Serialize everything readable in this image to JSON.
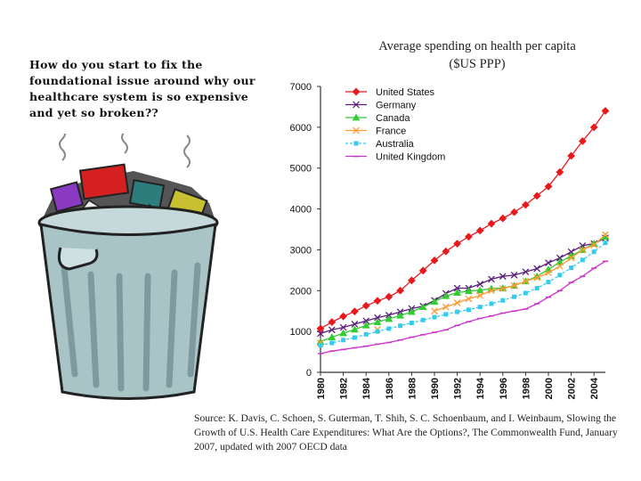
{
  "question_text": "How do you start to fix the foundational issue around why our healthcare system is so expensive and yet so broken??",
  "illustration": "overflowing-trash-can",
  "source_note": "Source: K. Davis, C. Schoen, S. Guterman, T. Shih, S. C. Schoenbaum, and I. Weinbaum, Slowing the Growth of U.S. Health Care Expenditures: What Are the Options?, The Commonwealth Fund, January 2007, updated with 2007 OECD data",
  "chart_data": {
    "type": "line",
    "title": "Average spending on health per capita ($US PPP)",
    "xlabel": "",
    "ylabel": "",
    "ylim": [
      0,
      7000
    ],
    "yticks": [
      0,
      1000,
      2000,
      3000,
      4000,
      5000,
      6000,
      7000
    ],
    "xticks": [
      1980,
      1982,
      1984,
      1986,
      1988,
      1990,
      1992,
      1994,
      1996,
      1998,
      2000,
      2002,
      2004
    ],
    "x": [
      1980,
      1981,
      1982,
      1983,
      1984,
      1985,
      1986,
      1987,
      1988,
      1989,
      1990,
      1991,
      1992,
      1993,
      1994,
      1995,
      1996,
      1997,
      1998,
      1999,
      2000,
      2001,
      2002,
      2003,
      2004,
      2005
    ],
    "legend_position": "top-right",
    "series": [
      {
        "name": "United States",
        "color": "#e8191e",
        "marker": "diamond",
        "values": [
          1070,
          1230,
          1370,
          1490,
          1630,
          1750,
          1850,
          2000,
          2250,
          2490,
          2740,
          2960,
          3150,
          3320,
          3470,
          3640,
          3770,
          3920,
          4100,
          4320,
          4550,
          4900,
          5300,
          5660,
          6000,
          6400
        ]
      },
      {
        "name": "Germany",
        "color": "#5b1f7a",
        "marker": "x",
        "values": [
          950,
          1040,
          1100,
          1180,
          1260,
          1340,
          1400,
          1480,
          1560,
          1620,
          1760,
          1930,
          2060,
          2060,
          2160,
          2280,
          2350,
          2380,
          2460,
          2540,
          2680,
          2800,
          2950,
          3100,
          3150,
          3290
        ]
      },
      {
        "name": "Canada",
        "color": "#33cc33",
        "marker": "triangle",
        "values": [
          750,
          860,
          960,
          1050,
          1150,
          1230,
          1310,
          1390,
          1480,
          1600,
          1730,
          1870,
          1950,
          1990,
          2010,
          2050,
          2060,
          2120,
          2230,
          2350,
          2520,
          2700,
          2850,
          3000,
          3150,
          3320
        ]
      },
      {
        "name": "France",
        "color": "#ff9933",
        "marker": "x",
        "values": [
          720,
          null,
          null,
          null,
          null,
          1050,
          null,
          null,
          null,
          null,
          1500,
          1600,
          1700,
          1800,
          1880,
          2000,
          2050,
          2120,
          2230,
          2320,
          2440,
          2600,
          2800,
          3000,
          3120,
          3370
        ]
      },
      {
        "name": "Australia",
        "color": "#33ccee",
        "marker": "square",
        "values": [
          660,
          720,
          790,
          850,
          930,
          1000,
          1070,
          1140,
          1210,
          1280,
          1350,
          1420,
          1480,
          1530,
          1600,
          1680,
          1760,
          1850,
          1940,
          2060,
          2210,
          2380,
          2560,
          2750,
          2950,
          3170
        ]
      },
      {
        "name": "United Kingdom",
        "color": "#cc33cc",
        "marker": "dash",
        "values": [
          460,
          520,
          560,
          600,
          640,
          690,
          730,
          790,
          860,
          920,
          980,
          1040,
          1150,
          1240,
          1320,
          1380,
          1450,
          1500,
          1550,
          1680,
          1840,
          2000,
          2200,
          2350,
          2550,
          2720
        ]
      }
    ]
  }
}
